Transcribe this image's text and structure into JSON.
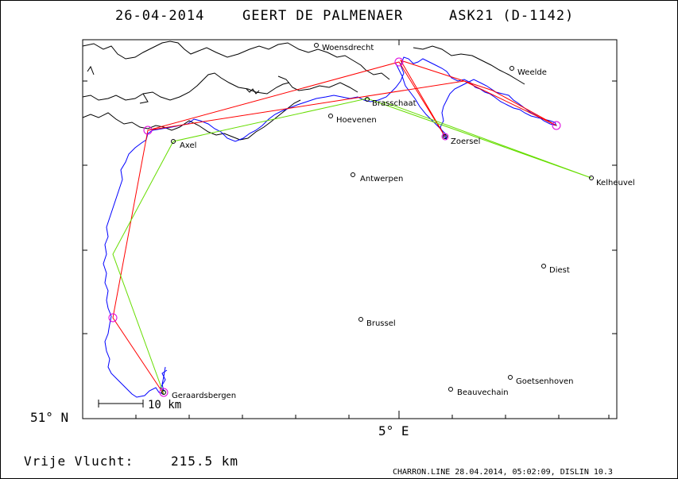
{
  "header": {
    "date": "26-04-2014",
    "pilot": "GEERT DE PALMENAER",
    "glider": "ASK21 (D-1142)"
  },
  "places": [
    {
      "name": "Woensdrecht"
    },
    {
      "name": "Weelde"
    },
    {
      "name": "Brasschaat"
    },
    {
      "name": "Hoevenen"
    },
    {
      "name": "Zoersel"
    },
    {
      "name": "Axel"
    },
    {
      "name": "Kelheuvel"
    },
    {
      "name": "Antwerpen"
    },
    {
      "name": "Diest"
    },
    {
      "name": "Brussel"
    },
    {
      "name": "Goetsenhoven"
    },
    {
      "name": "Beauvechain"
    },
    {
      "name": "Geraardsbergen"
    }
  ],
  "axes": {
    "lat_label": "51° N",
    "lon_label": "5° E"
  },
  "scale": {
    "label": "10 km"
  },
  "footer": {
    "free_flight_label": "Vrije Vlucht:",
    "free_flight_value": "215.5 km",
    "credit": "CHARRON.LINE 28.04.2014, 05:02:09, DISLIN 10.3"
  },
  "colors": {
    "track": "#0000ff",
    "task": "#ff0000",
    "free_flight": "#66dd00",
    "turnpoint": "#dd00dd",
    "coast": "#000000"
  }
}
